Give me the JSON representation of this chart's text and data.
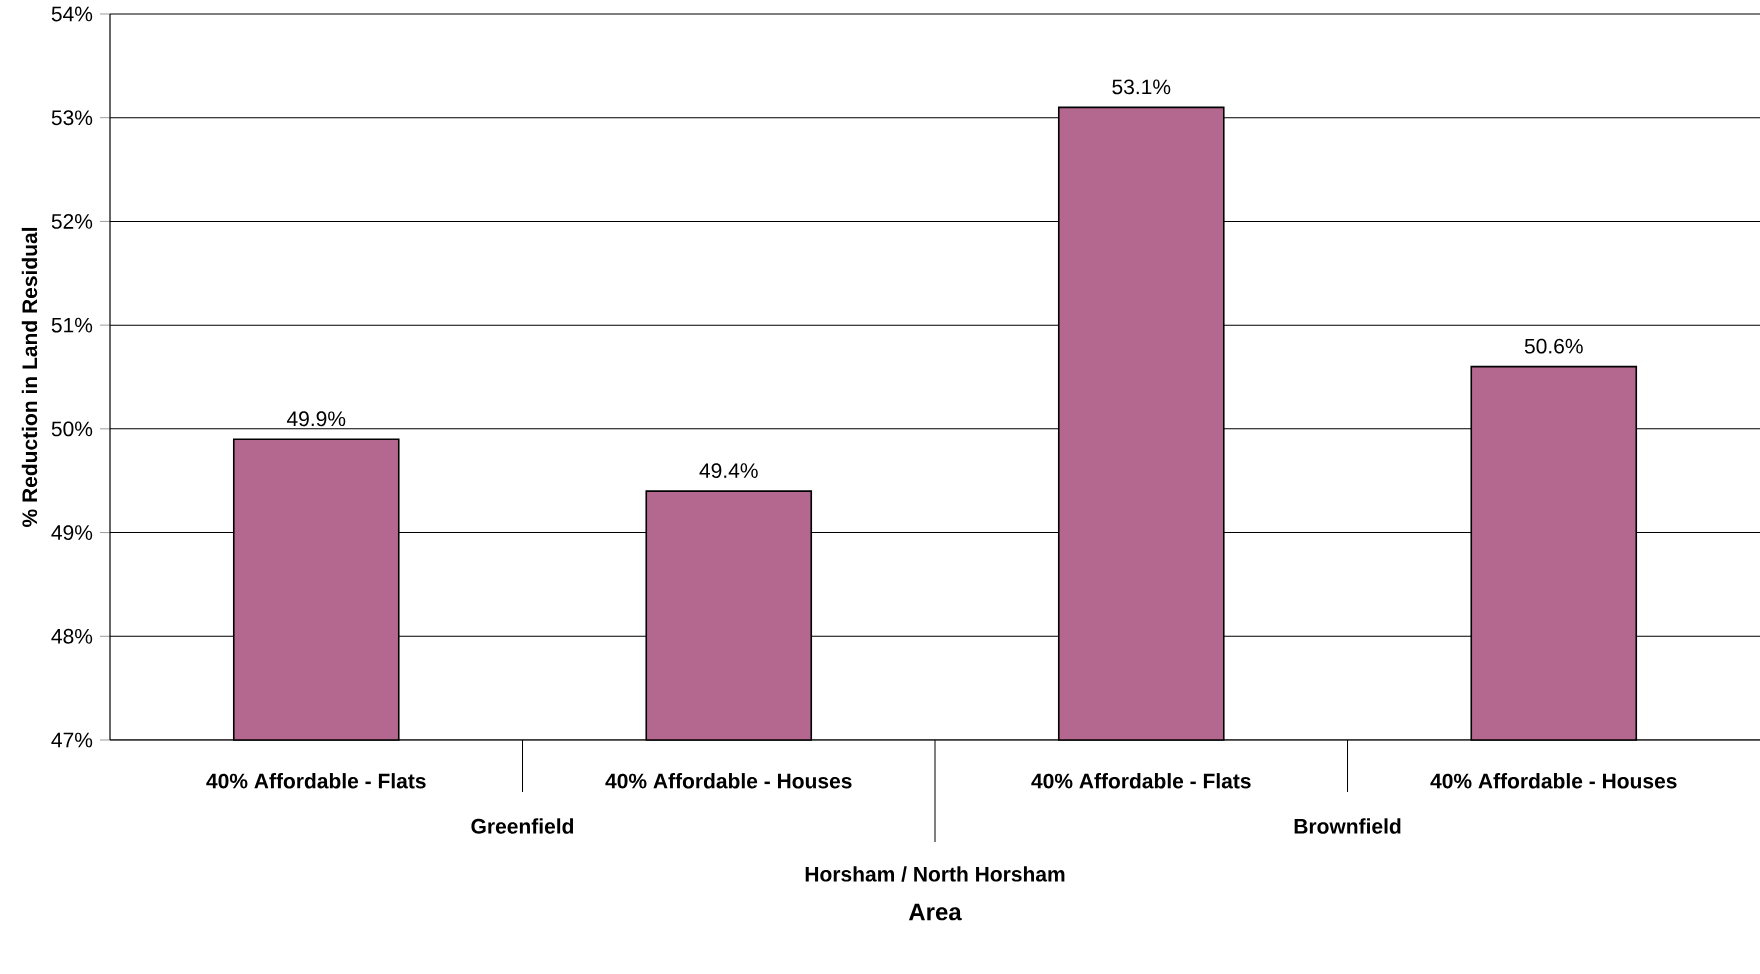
{
  "chart_data": {
    "type": "bar",
    "xlabel": "Area",
    "ylabel": "% Reduction in Land Residual",
    "categories": [
      "40% Affordable - Flats",
      "40% Affordable - Houses",
      "40% Affordable - Flats",
      "40% Affordable - Houses"
    ],
    "values": [
      49.9,
      49.4,
      53.1,
      50.6
    ],
    "value_labels": [
      "49.9%",
      "49.4%",
      "53.1%",
      "50.6%"
    ],
    "color": "#b5688f",
    "ylim": [
      47,
      54
    ],
    "yticks": [
      {
        "value": 47,
        "label": "47%"
      },
      {
        "value": 48,
        "label": "48%"
      },
      {
        "value": 49,
        "label": "49%"
      },
      {
        "value": 50,
        "label": "50%"
      },
      {
        "value": 51,
        "label": "51%"
      },
      {
        "value": 52,
        "label": "52%"
      },
      {
        "value": 53,
        "label": "53%"
      },
      {
        "value": 54,
        "label": "54%"
      }
    ],
    "grid": "y",
    "annotations": [
      "Greenfield",
      "Brownfield",
      "Horsham / North Horsham"
    ]
  }
}
